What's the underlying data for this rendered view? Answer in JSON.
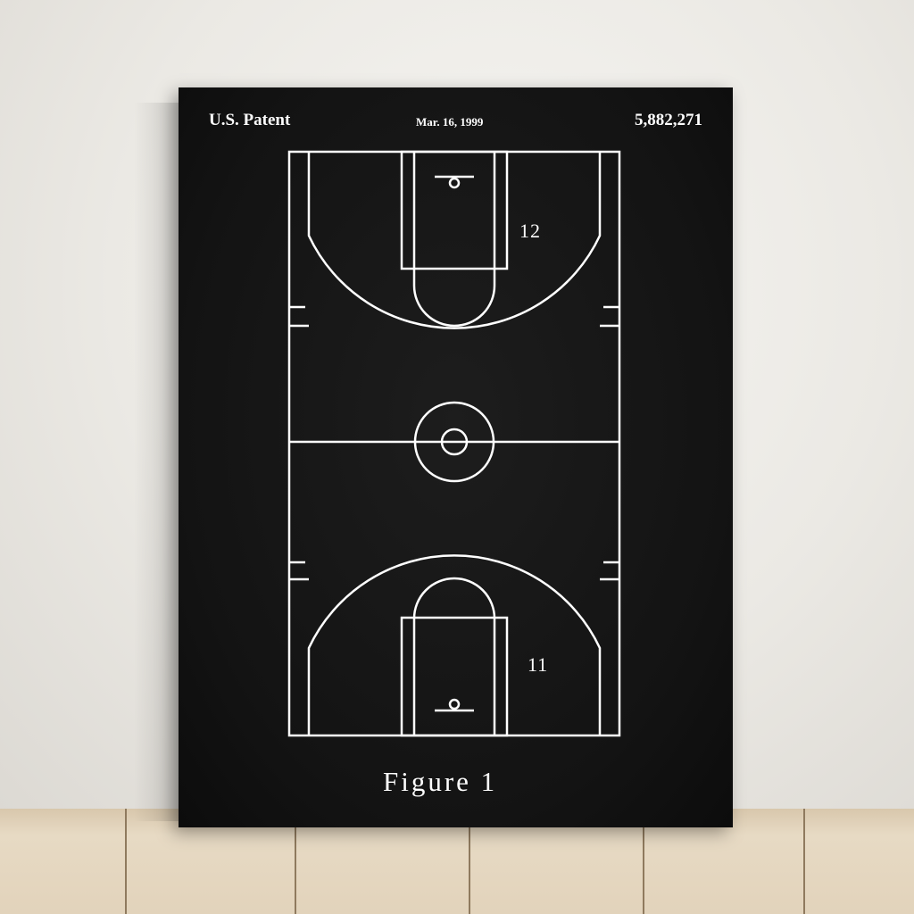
{
  "poster": {
    "header_left": "U.S. Patent",
    "header_date": "Mar. 16, 1999",
    "header_number": "5,882,271",
    "label_top": "12",
    "label_bottom": "11",
    "caption": "Figure 1"
  },
  "colors": {
    "canvas": "#141414",
    "line": "#ffffff",
    "wall": "#eeece8",
    "floor": "#e2d3bb"
  },
  "icons": [
    "basketball-court-drawing"
  ]
}
